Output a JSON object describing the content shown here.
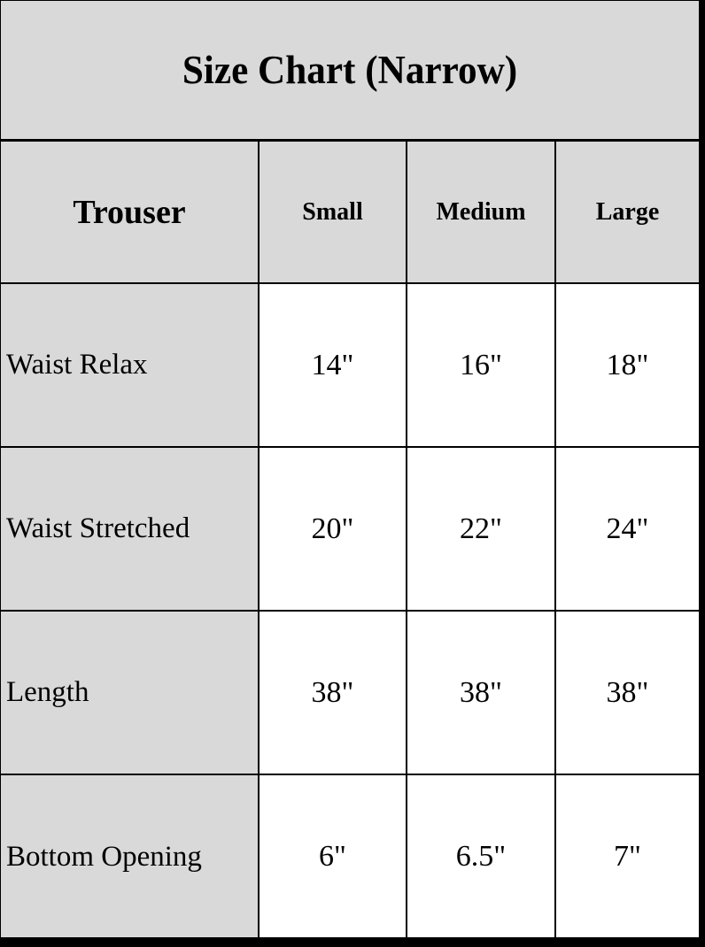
{
  "chart_data": {
    "type": "table",
    "title": "Size Chart (Narrow)",
    "corner_header": "Trouser",
    "column_headers": [
      "Small",
      "Medium",
      "Large"
    ],
    "row_labels": [
      "Waist Relax",
      "Waist Stretched",
      "Length",
      "Bottom Opening"
    ],
    "values": [
      [
        "14\"",
        "16\"",
        "18\""
      ],
      [
        "20\"",
        "22\"",
        "24\""
      ],
      [
        "38\"",
        "38\"",
        "38\""
      ],
      [
        "6\"",
        "6.5\"",
        "7\""
      ]
    ],
    "colors": {
      "header_bg": "#d9d9d9",
      "value_cell_bg": "#ffffff",
      "grid_border": "#000000",
      "text": "#000000"
    }
  }
}
